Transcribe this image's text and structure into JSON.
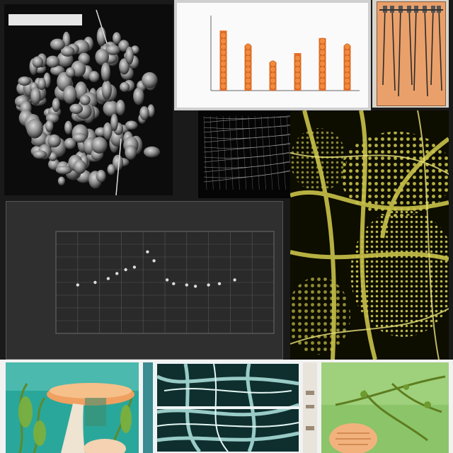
{
  "panels": {
    "micrograph_top_left": {
      "caption": ""
    },
    "bar_chart": {
      "title": ""
    },
    "tool_panel": {},
    "wire_mesh": {},
    "yellow_lattice": {},
    "scatter_chart": {
      "title": "",
      "subtitle": ""
    },
    "bottom_left_fungus": {},
    "bottom_middle_network": {},
    "bottom_right_specimen": {}
  },
  "colors": {
    "bar_fill": "#e8702a",
    "lattice_yellow": "#c9c24a",
    "scatter_bg": "#2f2f2f",
    "point_color": "#dcdcdc",
    "bottom_left_teal": "#2aa79b",
    "bottom_right_green": "#8cc46a"
  },
  "chart_data": [
    {
      "type": "bar",
      "categories": [
        "",
        "",
        "",
        "",
        "",
        ""
      ],
      "values": [
        80,
        60,
        38,
        50,
        70,
        60
      ],
      "ylim": [
        0,
        100
      ],
      "xlabel": "",
      "ylabel": "",
      "title": "",
      "grid": false
    },
    {
      "type": "scatter",
      "x": [
        1,
        1.8,
        2.4,
        2.8,
        3.2,
        3.6,
        4.2,
        4.5,
        5.1,
        5.4,
        6.0,
        6.4,
        7.0,
        7.5,
        8.2
      ],
      "y": [
        3.8,
        4.0,
        4.3,
        4.7,
        5.0,
        5.2,
        6.4,
        5.7,
        4.2,
        3.9,
        3.8,
        3.7,
        3.8,
        3.9,
        4.2
      ],
      "xlim": [
        0,
        10
      ],
      "ylim": [
        0,
        8
      ],
      "xlabel": "",
      "ylabel": "",
      "title": "",
      "grid": true
    }
  ]
}
